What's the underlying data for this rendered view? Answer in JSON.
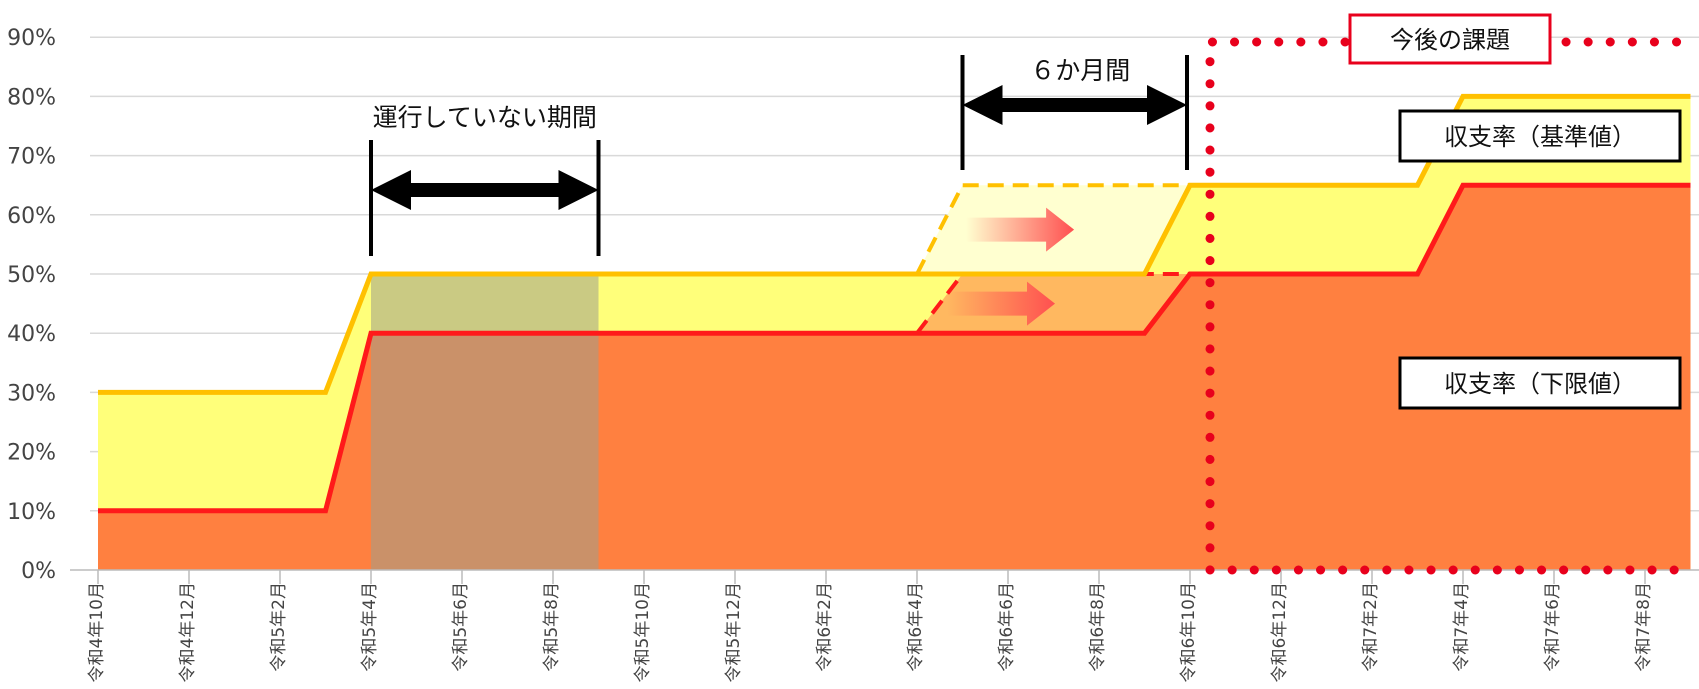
{
  "chart_data": {
    "type": "area",
    "categories": [
      "令和4年10月",
      "令和4年12月",
      "令和5年2月",
      "令和5年4月",
      "令和5年6月",
      "令和5年8月",
      "令和5年10月",
      "令和5年12月",
      "令和6年2月",
      "令和6年4月",
      "令和6年6月",
      "令和6年8月",
      "令和6年10月",
      "令和6年12月",
      "令和7年2月",
      "令和7年4月",
      "令和7年6月",
      "令和7年8月"
    ],
    "yticks": [
      "0%",
      "10%",
      "20%",
      "30%",
      "40%",
      "50%",
      "60%",
      "70%",
      "80%",
      "90%"
    ],
    "ylim": [
      0,
      90
    ],
    "grid": true,
    "series": [
      {
        "name": "収支率（基準値）",
        "color": "#FFC000",
        "fill": "#FFFF7A",
        "points": [
          [
            0,
            30
          ],
          [
            2.5,
            30
          ],
          [
            3,
            50
          ],
          [
            9,
            50
          ],
          [
            9.5,
            50
          ],
          [
            11.5,
            50
          ],
          [
            12,
            65
          ],
          [
            14.5,
            65
          ],
          [
            15,
            80
          ],
          [
            17.5,
            80
          ]
        ]
      },
      {
        "name": "収支率（下限値）",
        "color": "#FF1A1A",
        "fill": "#FF8040",
        "points": [
          [
            0,
            10
          ],
          [
            2.5,
            10
          ],
          [
            3,
            40
          ],
          [
            9,
            40
          ],
          [
            11.5,
            40
          ],
          [
            12,
            50
          ],
          [
            14.5,
            50
          ],
          [
            15,
            65
          ],
          [
            17.5,
            65
          ]
        ]
      }
    ],
    "planned": [
      {
        "series": "収支率（基準値）",
        "color": "#FFC000",
        "points": [
          [
            9,
            50
          ],
          [
            9.5,
            65
          ],
          [
            12,
            65
          ]
        ]
      },
      {
        "series": "収支率（下限値）",
        "color": "#FF1A1A",
        "points": [
          [
            9,
            40
          ],
          [
            9.5,
            50
          ],
          [
            12,
            50
          ]
        ]
      }
    ],
    "annotations": {
      "inactive_period": {
        "label": "運行していない期間",
        "from": 3,
        "to": 5.5
      },
      "six_months": {
        "label": "６か月間",
        "from": 9.5,
        "to": 12
      },
      "future_tasks": {
        "label": "今後の課題",
        "from": 12.3,
        "to": 17.8
      },
      "legend_standard": "収支率（基準値）",
      "legend_lower": "収支率（下限値）"
    }
  },
  "colors": {
    "grid": "#d9d9d9",
    "inactive_shade": "#9E9E8A",
    "dotted_border": "#E8001C",
    "arrow": "#000000",
    "shift_arrow": "#FF5050"
  }
}
